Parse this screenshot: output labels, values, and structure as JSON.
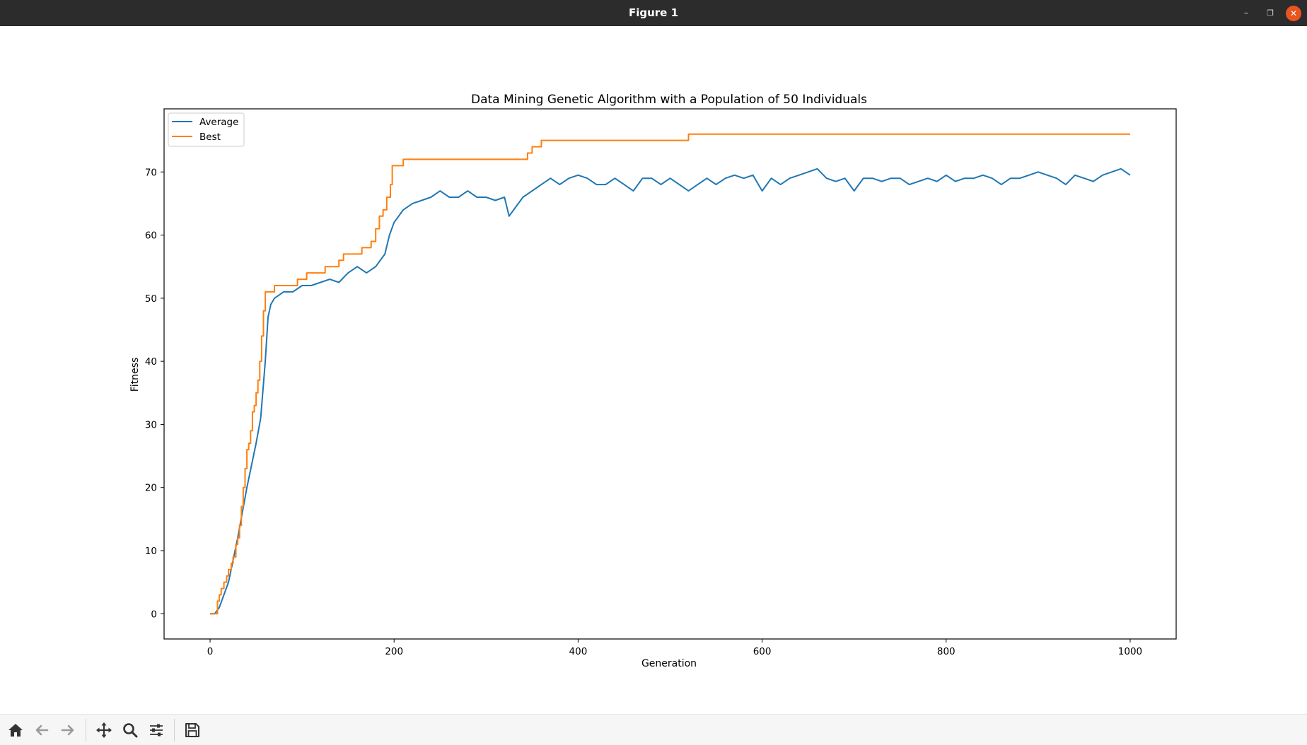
{
  "window": {
    "title": "Figure 1"
  },
  "toolbar": {
    "tools": [
      {
        "name": "home-icon",
        "label": "Home"
      },
      {
        "name": "back-icon",
        "label": "Back"
      },
      {
        "name": "forward-icon",
        "label": "Forward"
      },
      {
        "name": "pan-icon",
        "label": "Pan"
      },
      {
        "name": "zoom-icon",
        "label": "Zoom"
      },
      {
        "name": "configure-subplots-icon",
        "label": "Configure subplots"
      },
      {
        "name": "save-icon",
        "label": "Save"
      }
    ]
  },
  "chart_data": {
    "type": "line",
    "title": "Data Mining Genetic Algorithm with a Population of 50 Individuals",
    "xlabel": "Generation",
    "ylabel": "Fitness",
    "xlim": [
      -50,
      1050
    ],
    "ylim": [
      -4,
      80
    ],
    "xticks": [
      0,
      200,
      400,
      600,
      800,
      1000
    ],
    "yticks": [
      0,
      10,
      20,
      30,
      40,
      50,
      60,
      70
    ],
    "legend": "upper-left",
    "grid": false,
    "series": [
      {
        "name": "Average",
        "color": "#1f77b4",
        "x": [
          0,
          5,
          10,
          20,
          30,
          40,
          50,
          55,
          60,
          63,
          66,
          70,
          80,
          90,
          100,
          110,
          120,
          130,
          140,
          150,
          160,
          170,
          180,
          190,
          195,
          200,
          210,
          220,
          230,
          240,
          250,
          260,
          270,
          280,
          290,
          300,
          310,
          320,
          325,
          330,
          340,
          350,
          360,
          370,
          380,
          390,
          400,
          410,
          420,
          430,
          440,
          450,
          460,
          470,
          480,
          490,
          500,
          510,
          520,
          530,
          540,
          550,
          560,
          570,
          580,
          590,
          600,
          610,
          620,
          630,
          640,
          650,
          660,
          670,
          680,
          690,
          700,
          710,
          720,
          730,
          740,
          750,
          760,
          770,
          780,
          790,
          800,
          810,
          820,
          830,
          840,
          850,
          860,
          870,
          880,
          890,
          900,
          910,
          920,
          930,
          940,
          950,
          960,
          970,
          980,
          990,
          1000
        ],
        "values": [
          0,
          0,
          1,
          5,
          12,
          20,
          27,
          31,
          40,
          47,
          49,
          50,
          51,
          51,
          52,
          52,
          52.5,
          53,
          52.5,
          54,
          55,
          54,
          55,
          57,
          60,
          62,
          64,
          65,
          65.5,
          66,
          67,
          66,
          66,
          67,
          66,
          66,
          65.5,
          66,
          63,
          64,
          66,
          67,
          68,
          69,
          68,
          69,
          69.5,
          69,
          68,
          68,
          69,
          68,
          67,
          69,
          69,
          68,
          69,
          68,
          67,
          68,
          69,
          68,
          69,
          69.5,
          69,
          69.5,
          67,
          69,
          68,
          69,
          69.5,
          70,
          70.5,
          69,
          68.5,
          69,
          67,
          69,
          69,
          68.5,
          69,
          69,
          68,
          68.5,
          69,
          68.5,
          69.5,
          68.5,
          69,
          69,
          69.5,
          69,
          68,
          69,
          69,
          69.5,
          70,
          69.5,
          69,
          68,
          69.5,
          69,
          68.5,
          69.5,
          70,
          70.5,
          69.5
        ]
      },
      {
        "name": "Best",
        "color": "#ff7f0e",
        "x": [
          0,
          6,
          8,
          10,
          12,
          15,
          18,
          20,
          23,
          25,
          28,
          30,
          32,
          34,
          36,
          38,
          40,
          42,
          44,
          46,
          48,
          50,
          52,
          54,
          56,
          58,
          60,
          62,
          64,
          70,
          90,
          95,
          105,
          110,
          125,
          135,
          140,
          145,
          160,
          165,
          170,
          175,
          180,
          184,
          188,
          192,
          196,
          198,
          200,
          210,
          320,
          345,
          350,
          355,
          360,
          520,
          1000
        ],
        "values": [
          0,
          0,
          2,
          3,
          4,
          5,
          6,
          7,
          8,
          9,
          11,
          12,
          14,
          17,
          20,
          23,
          26,
          27,
          29,
          32,
          33,
          35,
          37,
          40,
          44,
          48,
          51,
          51,
          51,
          52,
          52,
          53,
          54,
          54,
          55,
          55,
          56,
          57,
          57,
          58,
          58,
          59,
          61,
          63,
          64,
          66,
          68,
          71,
          71,
          72,
          72,
          73,
          74,
          74,
          75,
          76,
          76
        ]
      }
    ]
  }
}
